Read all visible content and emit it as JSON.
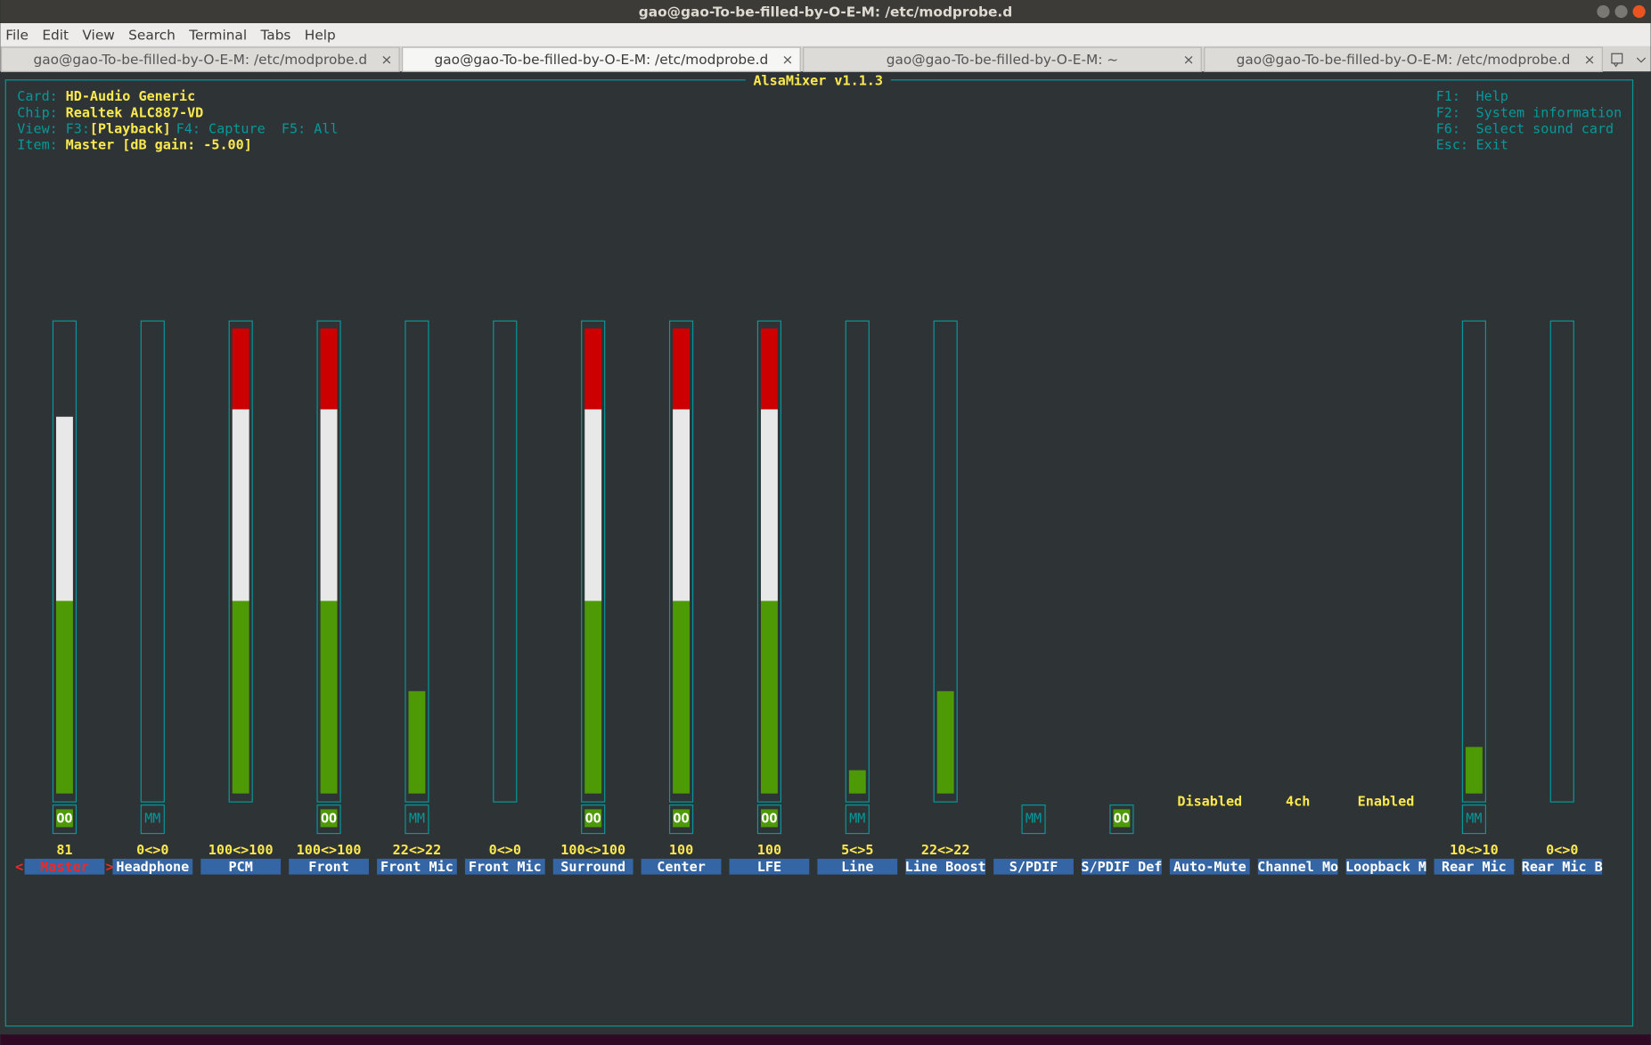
{
  "window": {
    "title": "gao@gao-To-be-filled-by-O-E-M: /etc/modprobe.d",
    "menu": [
      "File",
      "Edit",
      "View",
      "Search",
      "Terminal",
      "Tabs",
      "Help"
    ],
    "tabs": [
      "gao@gao-To-be-filled-by-O-E-M: /etc/modprobe.d",
      "gao@gao-To-be-filled-by-O-E-M: /etc/modprobe.d",
      "gao@gao-To-be-filled-by-O-E-M: ~",
      "gao@gao-To-be-filled-by-O-E-M: /etc/modprobe.d"
    ],
    "active_tab": 1,
    "tab_close": "×"
  },
  "mixer": {
    "title": "AlsaMixer v1.1.3",
    "info": [
      {
        "label": "Card:",
        "value": "HD-Audio Generic"
      },
      {
        "label": "Chip:",
        "value": "Realtek ALC887-VD"
      },
      {
        "label": "View:",
        "parts": [
          "F3:",
          "[Playback]",
          "F4: Capture  F5: All"
        ]
      },
      {
        "label": "Item:",
        "value": "Master [dB gain: -5.00]"
      }
    ],
    "help": [
      {
        "key": "F1:",
        "text": "Help"
      },
      {
        "key": "F2:",
        "text": "System information"
      },
      {
        "key": "F6:",
        "text": "Select sound card"
      },
      {
        "key": "Esc:",
        "text": "Exit"
      }
    ],
    "cursor": [
      "<",
      ">"
    ],
    "selected": 0,
    "controls": [
      {
        "name": "Master",
        "value": "81",
        "switch": "OO"
      },
      {
        "name": "Headphone",
        "value": "0<>0",
        "switch": "MM"
      },
      {
        "name": "PCM",
        "value": "100<>100"
      },
      {
        "name": "Front",
        "value": "100<>100",
        "switch": "OO"
      },
      {
        "name": "Front Mic",
        "value": "22<>22",
        "switch": "MM"
      },
      {
        "name": "Front Mic",
        "value": "0<>0"
      },
      {
        "name": "Surround",
        "value": "100<>100",
        "switch": "OO"
      },
      {
        "name": "Center",
        "value": "100",
        "switch": "OO"
      },
      {
        "name": "LFE",
        "value": "100",
        "switch": "OO"
      },
      {
        "name": "Line",
        "value": "5<>5",
        "switch": "MM"
      },
      {
        "name": "Line Boost",
        "value": "22<>22"
      },
      {
        "name": "S/PDIF",
        "switch": "MM"
      },
      {
        "name": "S/PDIF Def",
        "switch": "OO"
      },
      {
        "name": "Auto-Mute",
        "enum": "Disabled"
      },
      {
        "name": "Channel Mo",
        "enum": "4ch"
      },
      {
        "name": "Loopback M",
        "enum": "Enabled"
      },
      {
        "name": "Rear Mic",
        "value": "10<>10",
        "switch": "MM"
      },
      {
        "name": "Rear Mic B",
        "value": "0<>0"
      }
    ]
  }
}
